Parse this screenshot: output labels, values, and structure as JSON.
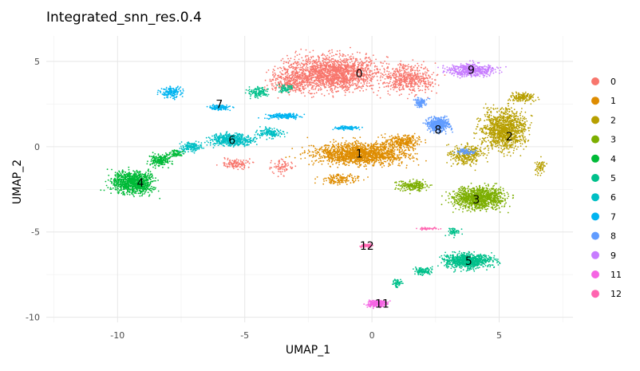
{
  "chart_data": {
    "type": "scatter",
    "title": "Integrated_snn_res.0.4",
    "xlabel": "UMAP_1",
    "ylabel": "UMAP_2",
    "xlim": [
      -12.8,
      7.9
    ],
    "ylim": [
      -10.3,
      6.5
    ],
    "x_ticks": [
      -10,
      -5,
      0,
      5
    ],
    "y_ticks": [
      -10,
      -5,
      0,
      5
    ],
    "x_tick_labels": [
      "-10",
      "-5",
      "0",
      "5"
    ],
    "y_tick_labels": [
      "-10",
      "-5",
      "0",
      "5"
    ],
    "grid": true,
    "legend_position": "right",
    "clusters": [
      {
        "name": "0",
        "color": "#F8766D",
        "label_x": -0.5,
        "label_y": 4.3,
        "blobs": [
          [
            -1.5,
            4.3,
            2.6,
            1.4,
            1800
          ],
          [
            1.5,
            4.0,
            1.4,
            1.2,
            500
          ],
          [
            -3.2,
            3.8,
            1.2,
            0.9,
            300
          ],
          [
            -5.3,
            -1.0,
            0.8,
            0.4,
            120
          ],
          [
            -3.5,
            -1.2,
            0.6,
            0.6,
            80
          ]
        ]
      },
      {
        "name": "1",
        "color": "#DE8C00",
        "label_x": -0.5,
        "label_y": -0.4,
        "blobs": [
          [
            -0.5,
            -0.4,
            2.6,
            0.9,
            1600
          ],
          [
            1.2,
            0.3,
            0.9,
            0.6,
            250
          ],
          [
            -1.2,
            -1.9,
            1.0,
            0.4,
            150
          ]
        ]
      },
      {
        "name": "2",
        "color": "#B79F00",
        "label_x": 5.4,
        "label_y": 0.6,
        "blobs": [
          [
            5.2,
            1.0,
            1.2,
            1.6,
            1200
          ],
          [
            3.7,
            -0.5,
            0.9,
            0.8,
            300
          ],
          [
            6.6,
            -1.2,
            0.3,
            0.6,
            60
          ],
          [
            5.9,
            2.9,
            0.7,
            0.4,
            150
          ]
        ]
      },
      {
        "name": "3",
        "color": "#7CAE00",
        "label_x": 4.1,
        "label_y": -3.1,
        "blobs": [
          [
            4.2,
            -3.0,
            1.4,
            0.9,
            1100
          ],
          [
            1.6,
            -2.3,
            0.8,
            0.4,
            200
          ]
        ]
      },
      {
        "name": "4",
        "color": "#00BA38",
        "label_x": -9.1,
        "label_y": -2.1,
        "blobs": [
          [
            -9.4,
            -2.1,
            1.1,
            0.9,
            1000
          ],
          [
            -8.3,
            -0.8,
            0.6,
            0.5,
            200
          ],
          [
            -7.7,
            -0.4,
            0.4,
            0.3,
            80
          ]
        ]
      },
      {
        "name": "5",
        "color": "#00C08B",
        "label_x": 3.8,
        "label_y": -6.7,
        "blobs": [
          [
            3.8,
            -6.7,
            1.3,
            0.6,
            900
          ],
          [
            2.0,
            -7.3,
            0.5,
            0.3,
            120
          ],
          [
            1.0,
            -8.0,
            0.3,
            0.3,
            50
          ],
          [
            3.2,
            -5.0,
            0.4,
            0.3,
            60
          ],
          [
            -4.5,
            3.2,
            0.6,
            0.4,
            120
          ],
          [
            -3.4,
            3.4,
            0.4,
            0.3,
            60
          ]
        ]
      },
      {
        "name": "6",
        "color": "#00BFC4",
        "label_x": -5.5,
        "label_y": 0.4,
        "blobs": [
          [
            -5.5,
            0.4,
            1.2,
            0.5,
            500
          ],
          [
            -7.1,
            0.0,
            0.6,
            0.4,
            150
          ],
          [
            -4.0,
            0.8,
            0.7,
            0.4,
            150
          ]
        ]
      },
      {
        "name": "7",
        "color": "#00B4F0",
        "label_x": -6.0,
        "label_y": 2.5,
        "blobs": [
          [
            -7.9,
            3.2,
            0.6,
            0.5,
            150
          ],
          [
            -6.0,
            2.3,
            0.6,
            0.2,
            120
          ],
          [
            -3.5,
            1.8,
            1.0,
            0.2,
            180
          ],
          [
            -1.0,
            1.1,
            0.7,
            0.15,
            100
          ]
        ]
      },
      {
        "name": "8",
        "color": "#619CFF",
        "label_x": 2.6,
        "label_y": 1.0,
        "blobs": [
          [
            2.6,
            1.3,
            0.6,
            0.6,
            450
          ],
          [
            1.9,
            2.6,
            0.4,
            0.4,
            100
          ],
          [
            3.7,
            -0.3,
            0.5,
            0.2,
            80
          ]
        ]
      },
      {
        "name": "9",
        "color": "#C77CFF",
        "label_x": 3.9,
        "label_y": 4.5,
        "blobs": [
          [
            3.9,
            4.5,
            1.3,
            0.5,
            500
          ]
        ]
      },
      {
        "name": "11",
        "color": "#F564E3",
        "label_x": 0.4,
        "label_y": -9.2,
        "blobs": [
          [
            0.2,
            -9.2,
            0.5,
            0.3,
            220
          ]
        ]
      },
      {
        "name": "12",
        "color": "#FF64B0",
        "label_x": -0.2,
        "label_y": -5.8,
        "blobs": [
          [
            -0.2,
            -5.8,
            0.3,
            0.15,
            80
          ],
          [
            2.2,
            -4.8,
            0.6,
            0.1,
            40
          ]
        ]
      }
    ]
  }
}
